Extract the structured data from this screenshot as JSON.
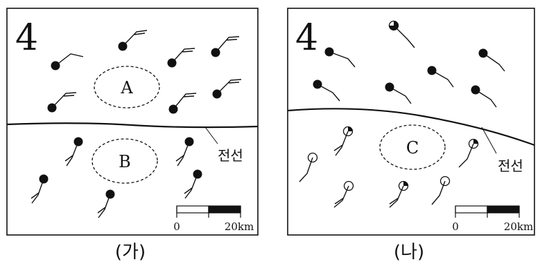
{
  "panel_a": {
    "number": "4",
    "region_a": "A",
    "region_b": "B",
    "front_label": "전선",
    "scale_start": "0",
    "scale_end": "20km",
    "caption": "(가)"
  },
  "panel_b": {
    "number": "4",
    "region_c": "C",
    "front_label": "전선",
    "scale_start": "0",
    "scale_end": "20km",
    "caption": "(나)"
  }
}
